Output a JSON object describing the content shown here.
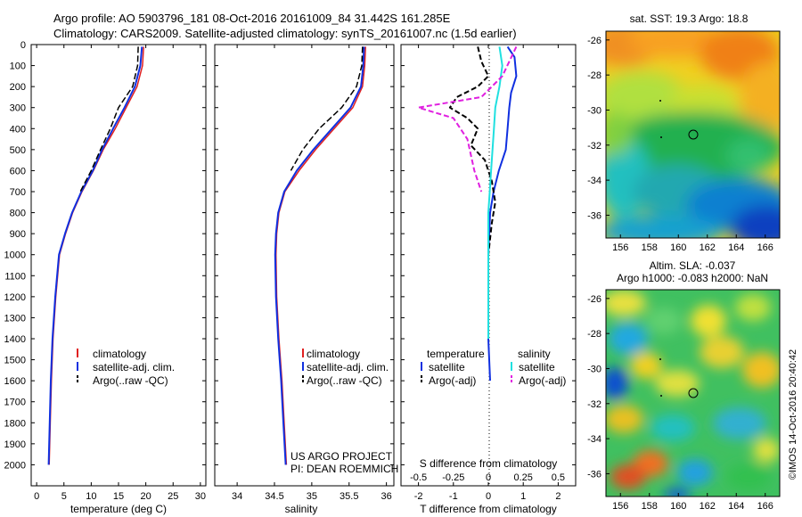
{
  "header": {
    "line1": "Argo profile: AO 5903796_181 08-Oct-2016 20161009_84 31.442S 161.285E",
    "line2": "Climatology: CARS2009. Satellite-adjusted climatology: synTS_20161007.nc (1.5d earlier)"
  },
  "colors": {
    "climatology": "#e02020",
    "satellite": "#1030e0",
    "argo": "#000000",
    "sal_satellite": "#20e0e0",
    "sal_argo": "#e020e0"
  },
  "credits": {
    "project": "US ARGO PROJECT",
    "pi": "PI: DEAN ROEMMICH"
  },
  "stamp": "©IMOS 14-Oct-2016 20:40:42",
  "depth_ticks": [
    "0",
    "100",
    "200",
    "300",
    "400",
    "500",
    "600",
    "700",
    "800",
    "900",
    "1000",
    "1100",
    "1200",
    "1300",
    "1400",
    "1500",
    "1600",
    "1700",
    "1800",
    "1900",
    "2000"
  ],
  "chart_data": [
    {
      "type": "line",
      "name": "temperature",
      "xlabel": "temperature (deg C)",
      "xlim": [
        -1,
        31
      ],
      "ylim": [
        0,
        2100
      ],
      "y_reversed": true,
      "xticks": [
        "0",
        "5",
        "10",
        "15",
        "20",
        "25",
        "30"
      ],
      "legend": [
        "climatology",
        "satellite-adj. clim.",
        "Argo(..raw -QC)"
      ],
      "series": [
        {
          "name": "climatology",
          "x": [
            19.6,
            19.4,
            18.4,
            16.4,
            14.4,
            12.2,
            10.4,
            8.3,
            6.6,
            5.3,
            4.2,
            3.5,
            3.0,
            2.7,
            2.5,
            2.3
          ],
          "y": [
            10,
            100,
            200,
            300,
            400,
            500,
            600,
            700,
            800,
            900,
            1000,
            1200,
            1400,
            1600,
            1800,
            2000
          ]
        },
        {
          "name": "satellite-adj. clim.",
          "x": [
            19.3,
            19.0,
            18.0,
            16.1,
            14.0,
            12.0,
            10.3,
            8.2,
            6.5,
            5.2,
            4.1,
            3.4,
            2.9,
            2.6,
            2.4,
            2.2
          ],
          "y": [
            10,
            100,
            200,
            300,
            400,
            500,
            600,
            700,
            800,
            900,
            1000,
            1200,
            1400,
            1600,
            1800,
            2000
          ]
        },
        {
          "name": "Argo(..raw -QC)",
          "x": [
            18.6,
            18.5,
            17.6,
            15.0,
            13.5,
            11.7,
            10.0,
            8.0
          ],
          "y": [
            10,
            100,
            200,
            300,
            400,
            500,
            600,
            700
          ]
        }
      ]
    },
    {
      "type": "line",
      "name": "salinity",
      "xlabel": "salinity",
      "xlim": [
        33.7,
        36.1
      ],
      "ylim": [
        0,
        2100
      ],
      "y_reversed": true,
      "xticks": [
        "34",
        "34.5",
        "35",
        "35.5",
        "36"
      ],
      "legend": [
        "climatology",
        "satellite-adj. clim.",
        "Argo(..raw -QC)"
      ],
      "series": [
        {
          "name": "climatology",
          "x": [
            35.72,
            35.71,
            35.68,
            35.55,
            35.3,
            35.05,
            34.83,
            34.64,
            34.56,
            34.53,
            34.52,
            34.53,
            34.56,
            34.6,
            34.63,
            34.66
          ],
          "y": [
            10,
            100,
            200,
            300,
            400,
            500,
            600,
            700,
            800,
            900,
            1000,
            1200,
            1400,
            1600,
            1800,
            2000
          ]
        },
        {
          "name": "satellite-adj. clim.",
          "x": [
            35.7,
            35.69,
            35.66,
            35.52,
            35.27,
            35.02,
            34.8,
            34.63,
            34.55,
            34.52,
            34.51,
            34.52,
            34.55,
            34.59,
            34.62,
            34.65
          ],
          "y": [
            10,
            100,
            200,
            300,
            400,
            500,
            600,
            700,
            800,
            900,
            1000,
            1200,
            1400,
            1600,
            1800,
            2000
          ]
        },
        {
          "name": "Argo(..raw -QC)",
          "x": [
            35.68,
            35.67,
            35.6,
            35.4,
            35.1,
            34.88,
            34.72
          ],
          "y": [
            10,
            100,
            200,
            300,
            400,
            500,
            600
          ]
        }
      ]
    },
    {
      "type": "line",
      "name": "difference from climatology",
      "xlabel": "T difference from climatology",
      "top_xlabel": "S difference from climatology",
      "xlim": [
        -2.5,
        2.5
      ],
      "ylim": [
        0,
        2100
      ],
      "y_reversed": true,
      "xticks": [
        "-2",
        "-1",
        "0",
        "1",
        "2"
      ],
      "top_xticks": [
        "-0.5",
        "-0.25",
        "0",
        "0.25",
        "0.5"
      ],
      "legend_groups": [
        {
          "heading": "temperature",
          "items": [
            "satellite",
            "Argo(-adj)"
          ]
        },
        {
          "heading": "salinity",
          "items": [
            "satellite",
            "Argo(-adj)"
          ]
        }
      ],
      "series": [
        {
          "name": "temperature satellite",
          "x": [
            0.55,
            0.75,
            0.8,
            0.65,
            0.6,
            0.55,
            0.5,
            0.3,
            0.15,
            0.05,
            0,
            0,
            0,
            0.05
          ],
          "y": [
            10,
            60,
            150,
            230,
            300,
            400,
            500,
            600,
            700,
            800,
            1000,
            1200,
            1400,
            1600
          ]
        },
        {
          "name": "temperature Argo(-adj)",
          "x": [
            -0.3,
            -0.2,
            0.0,
            -0.3,
            -0.9,
            -1.1,
            -0.6,
            -0.3,
            -0.5,
            -0.1,
            0.1,
            0.2,
            0.1,
            0.0
          ],
          "y": [
            10,
            80,
            150,
            200,
            250,
            300,
            350,
            400,
            480,
            550,
            650,
            750,
            850,
            1000
          ]
        },
        {
          "name": "salinity satellite",
          "x": [
            0.08,
            0.1,
            0.08,
            0.05,
            0.04,
            0.03,
            0.02,
            0.01,
            0.0,
            0.0,
            0.0
          ],
          "y": [
            10,
            100,
            200,
            300,
            400,
            500,
            600,
            700,
            800,
            1000,
            1400
          ]
        },
        {
          "name": "salinity Argo(-adj)",
          "x": [
            0.2,
            0.1,
            -0.05,
            -0.5,
            -0.25,
            -0.15,
            -0.1,
            -0.05
          ],
          "y": [
            10,
            150,
            250,
            300,
            350,
            450,
            600,
            700
          ]
        }
      ]
    },
    {
      "type": "heatmap",
      "name": "sat. SST",
      "title": "sat. SST: 19.3 Argo: 18.8",
      "xticks": [
        "156",
        "158",
        "160",
        "162",
        "164",
        "166"
      ],
      "yticks": [
        "-26",
        "-28",
        "-30",
        "-32",
        "-34",
        "-36"
      ],
      "xlim": [
        155,
        167
      ],
      "ylim": [
        -37.3,
        -25.5
      ],
      "argo_position": {
        "lon": 161.285,
        "lat": -31.442
      }
    },
    {
      "type": "heatmap",
      "name": "Altim. SLA",
      "title": "Altim. SLA: -0.037",
      "subtitle": "Argo h1000: -0.083 h2000: NaN",
      "xticks": [
        "156",
        "158",
        "160",
        "162",
        "164",
        "166"
      ],
      "yticks": [
        "-26",
        "-28",
        "-30",
        "-32",
        "-34",
        "-36"
      ],
      "xlim": [
        155,
        167
      ],
      "ylim": [
        -37.3,
        -25.5
      ],
      "argo_position": {
        "lon": 161.285,
        "lat": -31.442
      }
    }
  ]
}
